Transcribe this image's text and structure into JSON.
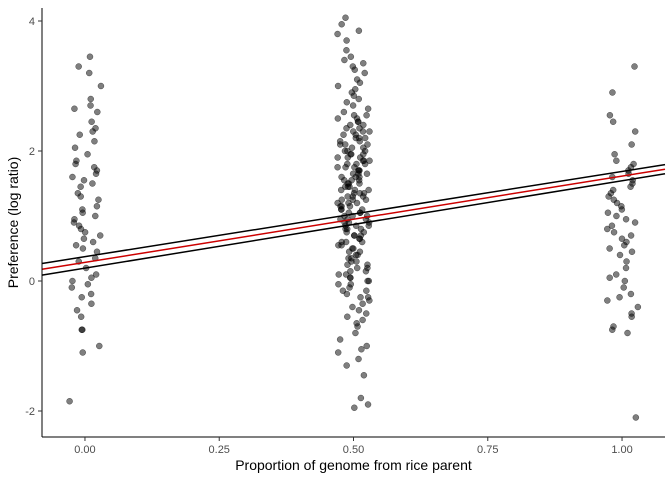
{
  "chart_data": {
    "type": "scatter",
    "title": "",
    "xlabel": "Proportion of genome from rice parent",
    "ylabel": "Preference (log ratio)",
    "xlim": [
      -0.08,
      1.08
    ],
    "ylim": [
      -2.4,
      4.2
    ],
    "x_ticks": [
      0.0,
      0.25,
      0.5,
      0.75,
      1.0
    ],
    "x_tick_labels": [
      "0.00",
      "0.25",
      "0.50",
      "0.75",
      "1.00"
    ],
    "y_ticks": [
      -2,
      0,
      2,
      4
    ],
    "y_tick_labels": [
      "-2",
      "0",
      "2",
      "4"
    ],
    "grid": false,
    "legend": "none",
    "point_color": "#000000",
    "point_opacity": 0.5,
    "groups": [
      {
        "x": 0.0,
        "values": [
          3.45,
          3.3,
          3.2,
          3.0,
          2.8,
          2.7,
          2.65,
          2.6,
          2.45,
          2.35,
          2.3,
          2.25,
          2.15,
          2.05,
          1.95,
          1.85,
          1.8,
          1.75,
          1.7,
          1.65,
          1.6,
          1.55,
          1.5,
          1.45,
          1.35,
          1.3,
          1.25,
          1.15,
          1.1,
          1.05,
          1.0,
          0.95,
          0.9,
          0.85,
          0.8,
          0.75,
          0.7,
          0.65,
          0.6,
          0.55,
          0.5,
          0.45,
          0.35,
          0.3,
          0.2,
          0.1,
          0.05,
          0.0,
          -0.05,
          -0.1,
          -0.2,
          -0.25,
          -0.35,
          -0.45,
          -0.55,
          -0.75,
          -0.75,
          -1.0,
          -1.1,
          -1.85
        ]
      },
      {
        "x": 0.5,
        "values": [
          4.05,
          3.95,
          3.85,
          3.8,
          3.7,
          3.55,
          3.45,
          3.4,
          3.35,
          3.3,
          3.25,
          3.2,
          3.1,
          3.05,
          3.0,
          2.95,
          2.9,
          2.85,
          2.8,
          2.75,
          2.7,
          2.65,
          2.6,
          2.55,
          2.55,
          2.5,
          2.5,
          2.45,
          2.45,
          2.4,
          2.4,
          2.35,
          2.35,
          2.3,
          2.3,
          2.3,
          2.25,
          2.25,
          2.2,
          2.2,
          2.2,
          2.15,
          2.15,
          2.1,
          2.1,
          2.1,
          2.05,
          2.05,
          2.0,
          2.0,
          2.0,
          1.95,
          1.95,
          1.95,
          1.9,
          1.9,
          1.9,
          1.85,
          1.85,
          1.85,
          1.8,
          1.8,
          1.8,
          1.75,
          1.75,
          1.75,
          1.7,
          1.7,
          1.7,
          1.65,
          1.65,
          1.65,
          1.6,
          1.6,
          1.6,
          1.55,
          1.55,
          1.55,
          1.5,
          1.5,
          1.5,
          1.45,
          1.45,
          1.45,
          1.4,
          1.4,
          1.4,
          1.35,
          1.35,
          1.35,
          1.3,
          1.3,
          1.3,
          1.25,
          1.25,
          1.25,
          1.2,
          1.2,
          1.2,
          1.15,
          1.15,
          1.15,
          1.1,
          1.1,
          1.1,
          1.05,
          1.05,
          1.05,
          1.0,
          1.0,
          1.0,
          0.95,
          0.95,
          0.95,
          0.9,
          0.9,
          0.9,
          0.85,
          0.85,
          0.85,
          0.8,
          0.8,
          0.8,
          0.75,
          0.75,
          0.7,
          0.7,
          0.7,
          0.65,
          0.65,
          0.6,
          0.6,
          0.6,
          0.55,
          0.55,
          0.5,
          0.5,
          0.45,
          0.45,
          0.4,
          0.4,
          0.35,
          0.35,
          0.3,
          0.3,
          0.25,
          0.25,
          0.2,
          0.2,
          0.15,
          0.15,
          0.1,
          0.1,
          0.05,
          0.05,
          0.0,
          0.0,
          -0.05,
          -0.05,
          -0.1,
          -0.15,
          -0.15,
          -0.2,
          -0.25,
          -0.25,
          -0.3,
          -0.35,
          -0.4,
          -0.45,
          -0.5,
          -0.55,
          -0.6,
          -0.65,
          -0.7,
          -0.8,
          -0.9,
          -1.0,
          -1.05,
          -1.1,
          -1.2,
          -1.3,
          -1.45,
          -1.8,
          -1.9,
          -1.95
        ]
      },
      {
        "x": 1.0,
        "values": [
          3.3,
          2.9,
          2.55,
          2.45,
          2.3,
          2.1,
          1.95,
          1.85,
          1.8,
          1.75,
          1.7,
          1.65,
          1.6,
          1.55,
          1.5,
          1.45,
          1.4,
          1.35,
          1.3,
          1.25,
          1.2,
          1.15,
          1.1,
          1.05,
          1.0,
          0.95,
          0.9,
          0.85,
          0.8,
          0.75,
          0.7,
          0.65,
          0.6,
          0.55,
          0.5,
          0.45,
          0.4,
          0.3,
          0.2,
          0.1,
          0.05,
          0.0,
          -0.1,
          -0.2,
          -0.25,
          -0.3,
          -0.4,
          -0.5,
          -0.55,
          -0.7,
          -0.75,
          -0.8,
          -2.1
        ]
      }
    ],
    "fit_line": {
      "x": [
        -0.08,
        1.08
      ],
      "y": [
        0.18,
        1.72
      ],
      "color": "#cc0000"
    },
    "ci_upper": {
      "x": [
        -0.08,
        1.08
      ],
      "y": [
        0.27,
        1.79
      ],
      "color": "#000000"
    },
    "ci_lower": {
      "x": [
        -0.08,
        1.08
      ],
      "y": [
        0.09,
        1.65
      ],
      "color": "#000000"
    }
  }
}
